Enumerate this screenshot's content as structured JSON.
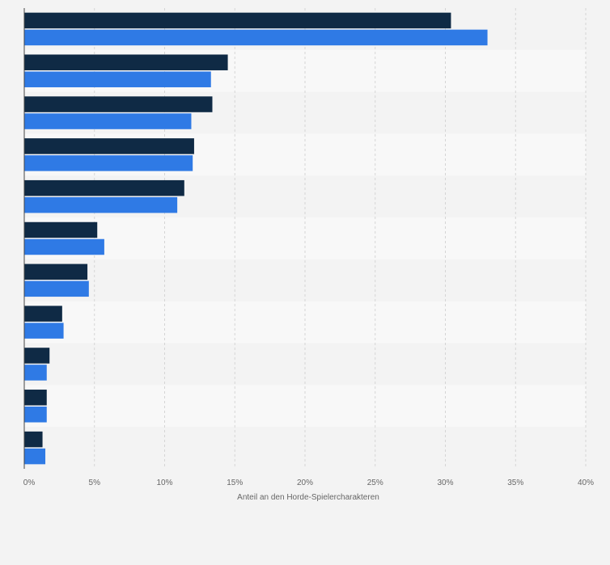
{
  "chart_data": {
    "type": "bar",
    "orientation": "horizontal",
    "title": "",
    "xlabel": "Anteil an den Horde-Spielercharakteren",
    "ylabel": "",
    "xlim": [
      0,
      40
    ],
    "x_ticks": [
      0,
      5,
      10,
      15,
      20,
      25,
      30,
      35,
      40
    ],
    "x_tick_labels": [
      "0%",
      "5%",
      "10%",
      "15%",
      "20%",
      "25%",
      "30%",
      "35%",
      "40%"
    ],
    "categories": [
      "",
      "",
      "",
      "",
      "",
      "",
      "",
      "",
      "",
      "",
      ""
    ],
    "series": [
      {
        "color": "#0f2a45",
        "values": [
          30.4,
          14.5,
          13.4,
          12.1,
          11.4,
          5.2,
          4.5,
          2.7,
          1.8,
          1.6,
          1.3
        ]
      },
      {
        "color": "#2f7ae5",
        "values": [
          33.0,
          13.3,
          11.9,
          12.0,
          10.9,
          5.7,
          4.6,
          2.8,
          1.6,
          1.6,
          1.5
        ]
      }
    ],
    "grid": true,
    "legend": "none",
    "colors": {
      "background": "#f3f3f3",
      "band_odd": "#f3f3f3",
      "band_even": "#f8f8f8",
      "grid": "#d5d5d5",
      "axis": "#444444",
      "text": "#666666"
    }
  }
}
